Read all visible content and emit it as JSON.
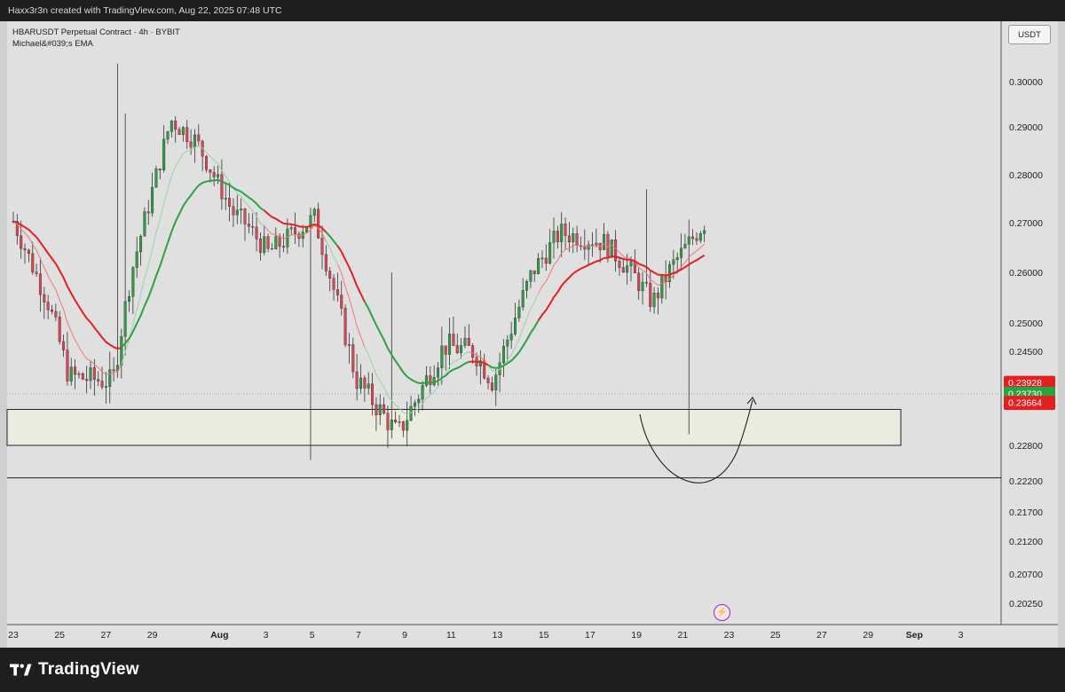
{
  "header": {
    "credit": "Haxx3r3n created with TradingView.com, Aug 22, 2025 07:48 UTC"
  },
  "legend": {
    "symbol": "HBARUSDT Perpetual Contract · 4h · BYBIT",
    "indicator": "Michael&#039;s EMA"
  },
  "currency": "USDT",
  "footer": {
    "brand": "TradingView"
  },
  "colors": {
    "up": "#2e9e44",
    "down": "#e04452",
    "ema_fast": "#f07878",
    "ema_slow_red": "#e3201f",
    "ema_green_light": "#9ad49d",
    "ema_green": "#2aa341"
  },
  "chart_data": {
    "type": "candlestick",
    "timeframe": "4h",
    "y_axis": {
      "ticks": [
        "0.30000",
        "0.29000",
        "0.28000",
        "0.27000",
        "0.26000",
        "0.25000",
        "0.24500",
        "0.22800",
        "0.22200",
        "0.21700",
        "0.21200",
        "0.20700",
        "0.20250"
      ],
      "price_labels": [
        {
          "value": "0.23928",
          "bg": "#e3201f"
        },
        {
          "value": "0.23730",
          "sub": "11:01",
          "bg": "#2aa341"
        },
        {
          "value": "0.23664",
          "bg": "#e3201f"
        }
      ]
    },
    "x_axis": {
      "ticks": [
        "23",
        "25",
        "27",
        "29",
        "Aug",
        "3",
        "5",
        "7",
        "9",
        "11",
        "13",
        "15",
        "17",
        "19",
        "21",
        "23",
        "25",
        "27",
        "29",
        "Sep",
        "3"
      ]
    },
    "current_price": 0.2373,
    "support_zone": {
      "from": 0.228,
      "to": 0.2345
    },
    "horizontal_line": 0.2225,
    "projection": "rounded bottom curve from Aug 19 down to ~0.2215 then up toward Aug 23",
    "candles_keypoints": [
      {
        "date": "Jul 22",
        "close": 0.2725
      },
      {
        "date": "Jul 24",
        "close": 0.2405
      },
      {
        "date": "Jul 25",
        "close": 0.2395
      },
      {
        "date": "Jul 27",
        "close": 0.2915
      },
      {
        "date": "Jul 28",
        "close": 0.287
      },
      {
        "date": "Jul 30",
        "close": 0.264
      },
      {
        "date": "Jul 31",
        "close": 0.271
      },
      {
        "date": "Aug 2",
        "close": 0.24
      },
      {
        "date": "Aug 3",
        "close": 0.23
      },
      {
        "date": "Aug 4",
        "close": 0.246
      },
      {
        "date": "Aug 6",
        "close": 0.2395
      },
      {
        "date": "Aug 8",
        "close": 0.26
      },
      {
        "date": "Aug 10",
        "close": 0.268
      },
      {
        "date": "Aug 12",
        "close": 0.254
      },
      {
        "date": "Aug 14",
        "close": 0.271
      },
      {
        "date": "Aug 15",
        "close": 0.252
      },
      {
        "date": "Aug 17",
        "close": 0.258
      },
      {
        "date": "Aug 18",
        "close": 0.248
      },
      {
        "date": "Aug 20",
        "close": 0.234
      },
      {
        "date": "Aug 21",
        "close": 0.239
      },
      {
        "date": "Aug 22",
        "close": 0.2373
      }
    ]
  }
}
